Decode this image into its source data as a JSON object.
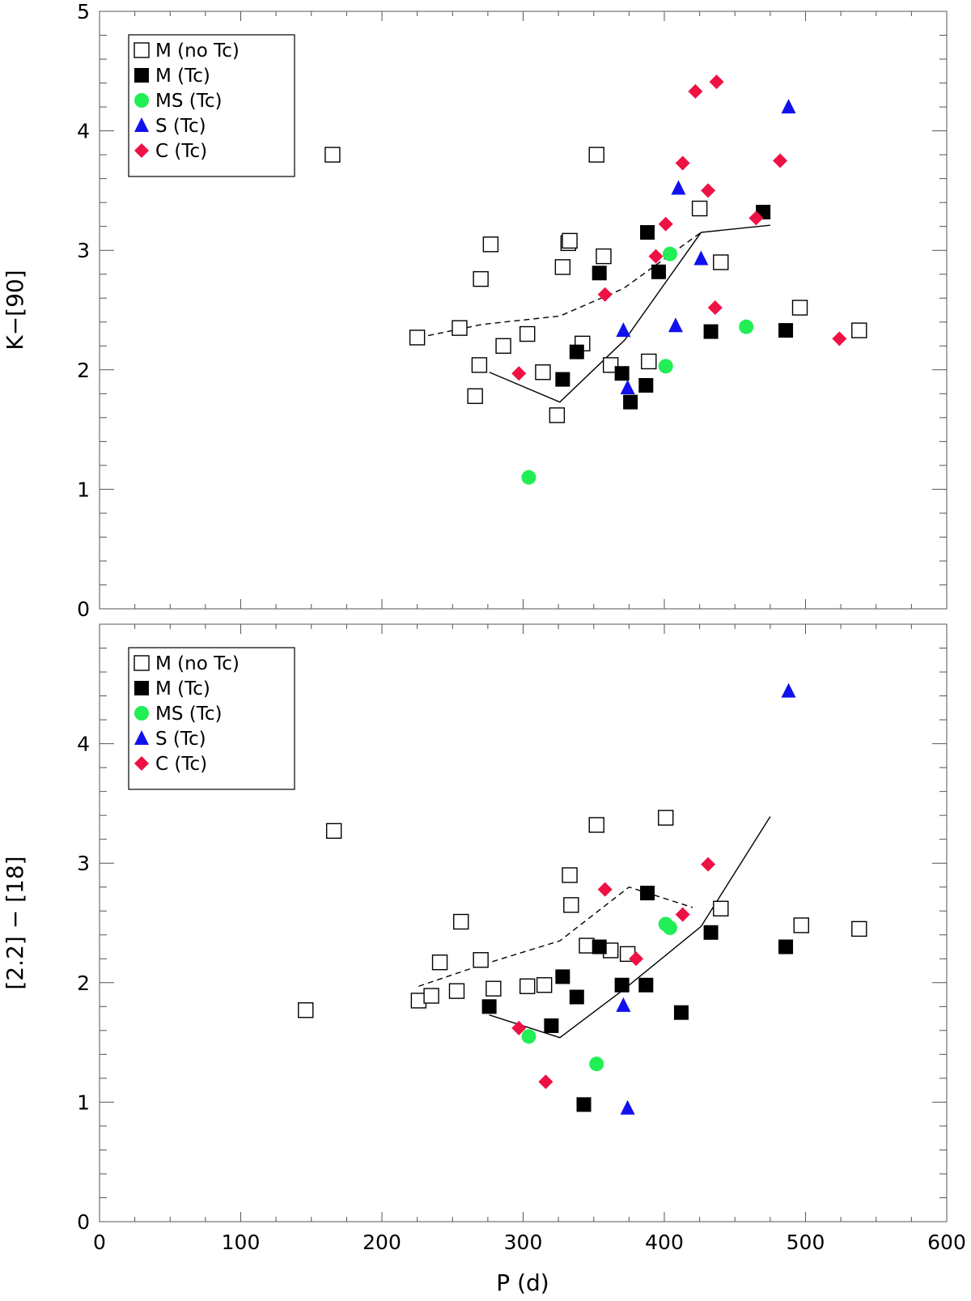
{
  "chart_data": [
    {
      "id": "top",
      "type": "scatter",
      "xlabel": "",
      "ylabel": "K−[90]",
      "xlim": [
        0,
        600
      ],
      "ylim": [
        0,
        5
      ],
      "x_ticks": [
        0,
        100,
        200,
        300,
        400,
        500,
        600
      ],
      "y_ticks": [
        0,
        1,
        2,
        3,
        4,
        5
      ],
      "show_x_tick_labels": false,
      "legend": {
        "position": "top-left",
        "entries": [
          {
            "label": "M (no Tc)",
            "group": "m_notc"
          },
          {
            "label": "M (Tc)",
            "group": "m_tc"
          },
          {
            "label": "MS (Tc)",
            "group": "ms_tc"
          },
          {
            "label": "S (Tc)",
            "group": "s_tc"
          },
          {
            "label": "C (Tc)",
            "group": "c_tc"
          }
        ]
      },
      "series": [
        {
          "name": "M (no Tc)",
          "group": "m_notc",
          "marker": "square-open",
          "color": "#000000",
          "points": [
            [
              165,
              3.8
            ],
            [
              225,
              2.27
            ],
            [
              255,
              2.35
            ],
            [
              266,
              1.78
            ],
            [
              269,
              2.04
            ],
            [
              270,
              2.76
            ],
            [
              277,
              3.05
            ],
            [
              286,
              2.2
            ],
            [
              303,
              2.3
            ],
            [
              314,
              1.98
            ],
            [
              324,
              1.62
            ],
            [
              328,
              2.86
            ],
            [
              332,
              3.06
            ],
            [
              333,
              3.08
            ],
            [
              342,
              2.22
            ],
            [
              352,
              3.8
            ],
            [
              357,
              2.95
            ],
            [
              362,
              2.04
            ],
            [
              389,
              2.07
            ],
            [
              425,
              3.35
            ],
            [
              440,
              2.9
            ],
            [
              496,
              2.52
            ],
            [
              538,
              2.33
            ]
          ]
        },
        {
          "name": "M (Tc)",
          "group": "m_tc",
          "marker": "square-filled",
          "color": "#000000",
          "points": [
            [
              328,
              1.92
            ],
            [
              338,
              2.15
            ],
            [
              354,
              2.81
            ],
            [
              370,
              1.97
            ],
            [
              376,
              1.73
            ],
            [
              387,
              1.87
            ],
            [
              388,
              3.15
            ],
            [
              396,
              2.82
            ],
            [
              433,
              2.32
            ],
            [
              470,
              3.32
            ],
            [
              486,
              2.33
            ]
          ]
        },
        {
          "name": "MS (Tc)",
          "group": "ms_tc",
          "marker": "circle-filled",
          "color": "#22ee55",
          "points": [
            [
              304,
              1.1
            ],
            [
              401,
              2.03
            ],
            [
              404,
              2.97
            ],
            [
              458,
              2.36
            ]
          ]
        },
        {
          "name": "S (Tc)",
          "group": "s_tc",
          "marker": "triangle-filled",
          "color": "#1111ee",
          "points": [
            [
              371,
              2.33
            ],
            [
              374,
              1.85
            ],
            [
              408,
              2.37
            ],
            [
              410,
              3.52
            ],
            [
              426,
              2.93
            ],
            [
              488,
              4.2
            ]
          ]
        },
        {
          "name": "C (Tc)",
          "group": "c_tc",
          "marker": "diamond-filled",
          "color": "#ee1144",
          "points": [
            [
              297,
              1.97
            ],
            [
              358,
              2.63
            ],
            [
              394,
              2.95
            ],
            [
              401,
              3.22
            ],
            [
              413,
              3.73
            ],
            [
              422,
              4.33
            ],
            [
              431,
              3.5
            ],
            [
              436,
              2.52
            ],
            [
              437,
              4.41
            ],
            [
              465,
              3.27
            ],
            [
              482,
              3.75
            ],
            [
              524,
              2.26
            ]
          ]
        }
      ],
      "lines": [
        {
          "name": "solid",
          "style": "solid",
          "points": [
            [
              276,
              1.98
            ],
            [
              326,
              1.73
            ],
            [
              372,
              2.25
            ],
            [
              426,
              3.15
            ],
            [
              475,
              3.21
            ]
          ]
        },
        {
          "name": "dashed",
          "style": "dashed",
          "points": [
            [
              226,
              2.27
            ],
            [
              271,
              2.38
            ],
            [
              326,
              2.45
            ],
            [
              371,
              2.68
            ],
            [
              426,
              3.15
            ]
          ]
        }
      ]
    },
    {
      "id": "bottom",
      "type": "scatter",
      "xlabel": "P (d)",
      "ylabel": "[2.2] − [18]",
      "xlim": [
        0,
        600
      ],
      "ylim": [
        0,
        5
      ],
      "x_ticks": [
        0,
        100,
        200,
        300,
        400,
        500,
        600
      ],
      "y_ticks": [
        0,
        1,
        2,
        3,
        4
      ],
      "show_x_tick_labels": true,
      "legend": {
        "position": "top-left",
        "entries": [
          {
            "label": "M (no Tc)",
            "group": "m_notc"
          },
          {
            "label": "M (Tc)",
            "group": "m_tc"
          },
          {
            "label": "MS (Tc)",
            "group": "ms_tc"
          },
          {
            "label": "S (Tc)",
            "group": "s_tc"
          },
          {
            "label": "C (Tc)",
            "group": "c_tc"
          }
        ]
      },
      "series": [
        {
          "name": "M (no Tc)",
          "group": "m_notc",
          "marker": "square-open",
          "color": "#000000",
          "points": [
            [
              146,
              1.77
            ],
            [
              166,
              3.27
            ],
            [
              226,
              1.85
            ],
            [
              235,
              1.89
            ],
            [
              241,
              2.17
            ],
            [
              253,
              1.93
            ],
            [
              256,
              2.51
            ],
            [
              270,
              2.19
            ],
            [
              279,
              1.95
            ],
            [
              303,
              1.97
            ],
            [
              315,
              1.98
            ],
            [
              333,
              2.9
            ],
            [
              334,
              2.65
            ],
            [
              345,
              2.31
            ],
            [
              352,
              3.32
            ],
            [
              362,
              2.27
            ],
            [
              374,
              2.24
            ],
            [
              401,
              3.38
            ],
            [
              440,
              2.62
            ],
            [
              497,
              2.48
            ],
            [
              538,
              2.45
            ]
          ]
        },
        {
          "name": "M (Tc)",
          "group": "m_tc",
          "marker": "square-filled",
          "color": "#000000",
          "points": [
            [
              276,
              1.8
            ],
            [
              320,
              1.64
            ],
            [
              328,
              2.05
            ],
            [
              338,
              1.88
            ],
            [
              343,
              0.98
            ],
            [
              354,
              2.3
            ],
            [
              370,
              1.98
            ],
            [
              387,
              1.98
            ],
            [
              388,
              2.75
            ],
            [
              412,
              1.75
            ],
            [
              433,
              2.42
            ],
            [
              486,
              2.3
            ]
          ]
        },
        {
          "name": "MS (Tc)",
          "group": "ms_tc",
          "marker": "circle-filled",
          "color": "#22ee55",
          "points": [
            [
              304,
              1.55
            ],
            [
              352,
              1.32
            ],
            [
              401,
              2.49
            ],
            [
              404,
              2.46
            ]
          ]
        },
        {
          "name": "S (Tc)",
          "group": "s_tc",
          "marker": "triangle-filled",
          "color": "#1111ee",
          "points": [
            [
              371,
              1.81
            ],
            [
              374,
              0.95
            ],
            [
              488,
              4.44
            ]
          ]
        },
        {
          "name": "C (Tc)",
          "group": "c_tc",
          "marker": "diamond-filled",
          "color": "#ee1144",
          "points": [
            [
              297,
              1.62
            ],
            [
              316,
              1.17
            ],
            [
              358,
              2.78
            ],
            [
              380,
              2.2
            ],
            [
              413,
              2.57
            ],
            [
              431,
              2.99
            ]
          ]
        }
      ],
      "lines": [
        {
          "name": "solid",
          "style": "solid",
          "points": [
            [
              276,
              1.73
            ],
            [
              326,
              1.54
            ],
            [
              372,
              1.95
            ],
            [
              426,
              2.47
            ],
            [
              475,
              3.39
            ]
          ]
        },
        {
          "name": "dashed",
          "style": "dashed",
          "points": [
            [
              226,
              1.97
            ],
            [
              271,
              2.15
            ],
            [
              326,
              2.35
            ],
            [
              375,
              2.8
            ],
            [
              420,
              2.63
            ]
          ]
        }
      ]
    }
  ]
}
